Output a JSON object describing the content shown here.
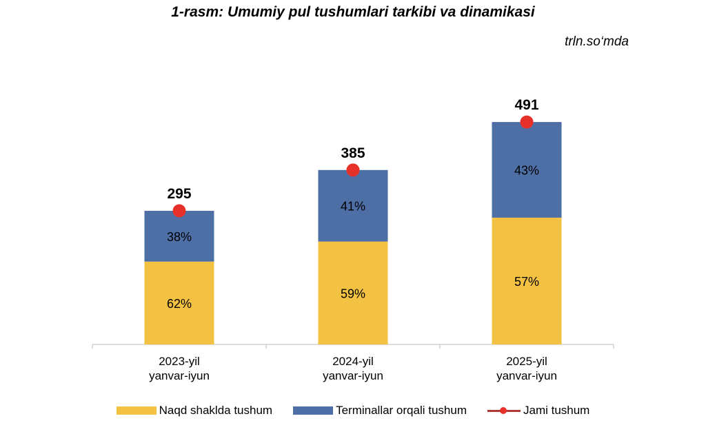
{
  "title": "1-rasm: Umumiy pul tushumlari tarkibi va dinamikasi",
  "unit": "trln.so‘mda",
  "chart_data": {
    "type": "bar",
    "stacked": true,
    "categories": [
      [
        "2023-yil",
        "yanvar-iyun"
      ],
      [
        "2024-yil",
        "yanvar-iyun"
      ],
      [
        "2025-yil",
        "yanvar-iyun"
      ]
    ],
    "series": [
      {
        "name": "Naqd shaklda tushum",
        "share_labels": [
          "62%",
          "59%",
          "57%"
        ],
        "share": [
          62,
          59,
          57
        ],
        "color": "#F4C242"
      },
      {
        "name": "Terminallar orqali tushum",
        "share_labels": [
          "38%",
          "41%",
          "43%"
        ],
        "share": [
          38,
          41,
          43
        ],
        "color": "#4E6FA6"
      },
      {
        "name": "Jami tushum",
        "type": "line-marker",
        "values": [
          295,
          385,
          491
        ],
        "labels": [
          "295",
          "385",
          "491"
        ],
        "color": "#E8302A"
      }
    ],
    "ylim": [
      0,
      540
    ],
    "grid": false,
    "legend": "bottom"
  }
}
